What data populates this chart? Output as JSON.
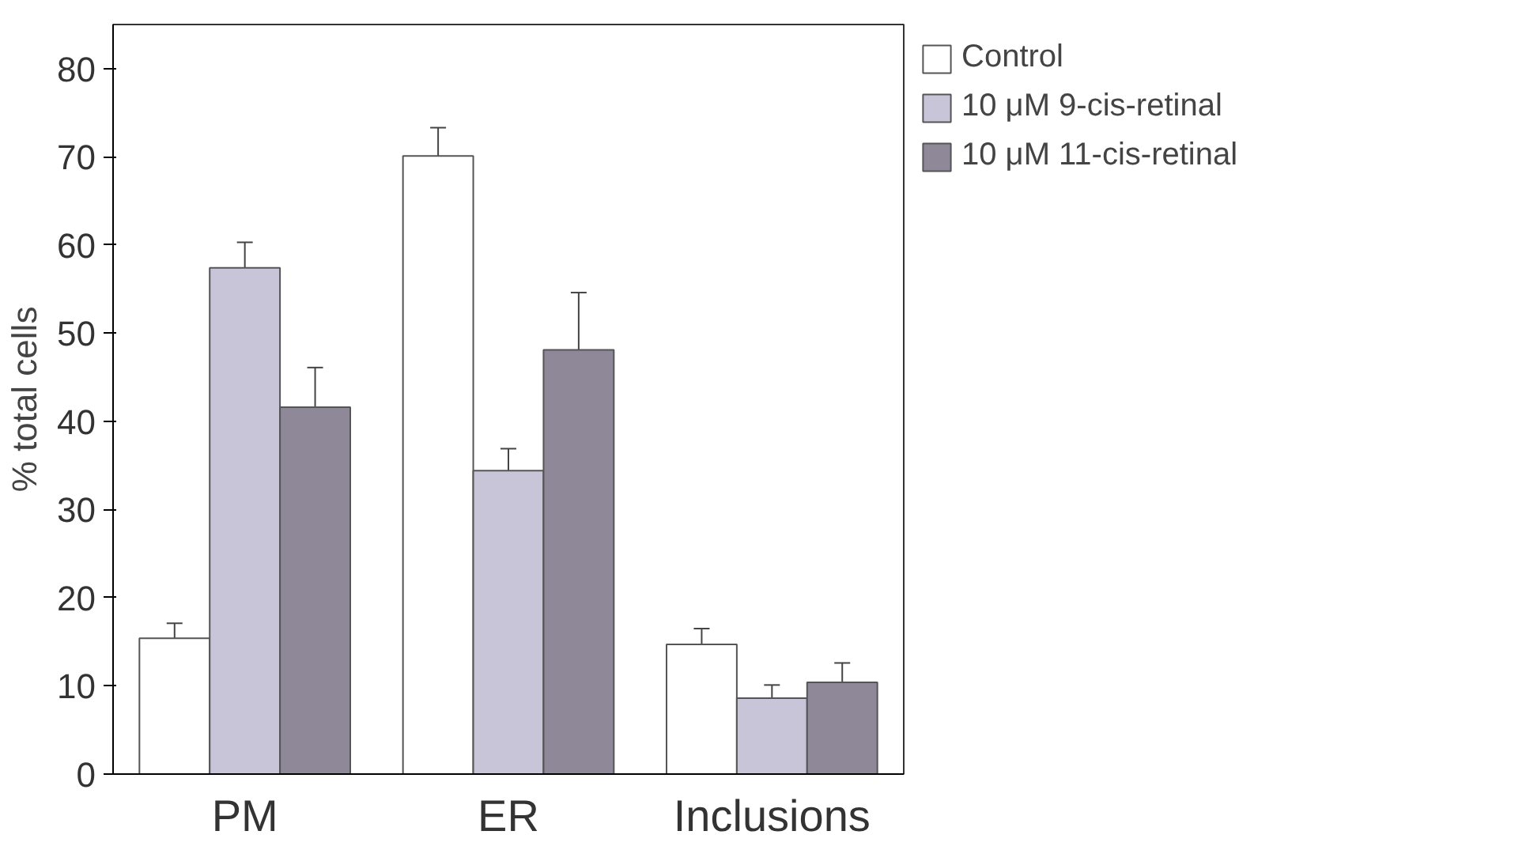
{
  "chart_data": {
    "type": "bar",
    "ylabel": "% total cells",
    "categories": [
      "PM",
      "ER",
      "Inclusions"
    ],
    "series": [
      {
        "name": "Control",
        "color": "#ffffff",
        "values": [
          15.4,
          70.1,
          14.7
        ],
        "errors": [
          1.7,
          3.2,
          1.8
        ]
      },
      {
        "name": "10 μM 9-cis-retinal",
        "color": "#c9c5d9",
        "values": [
          57.4,
          34.4,
          8.6
        ],
        "errors": [
          2.9,
          2.5,
          1.5
        ]
      },
      {
        "name": "10 μM 11-cis-retinal",
        "color": "#8f8899",
        "values": [
          41.6,
          48.1,
          10.4
        ],
        "errors": [
          4.5,
          6.5,
          2.2
        ]
      }
    ],
    "ylim": [
      0,
      85
    ],
    "yticks": [
      0,
      10,
      20,
      30,
      40,
      50,
      60,
      70,
      80
    ],
    "grid": false,
    "legend": "top right"
  }
}
